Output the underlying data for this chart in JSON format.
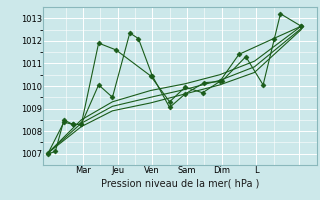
{
  "title": "",
  "xlabel": "Pression niveau de la mer( hPa )",
  "bg_color": "#cce8ea",
  "grid_color": "#ffffff",
  "line_color": "#1a5c1a",
  "ylim": [
    1006.5,
    1013.5
  ],
  "xlim": [
    -0.3,
    15.5
  ],
  "yticks": [
    1007,
    1008,
    1009,
    1010,
    1011,
    1012,
    1013
  ],
  "xtick_positions": [
    2.0,
    4.0,
    6.0,
    8.0,
    10.0,
    12.0,
    14.5
  ],
  "xtick_labels": [
    "Mar",
    "Jeu",
    "Ven",
    "Sam",
    "Dim",
    "L",
    ""
  ],
  "vline_positions": [
    2.0,
    4.0,
    6.0,
    8.0,
    10.0,
    12.0,
    14.5
  ],
  "series": [
    {
      "x": [
        0.0,
        0.4,
        0.9,
        1.4,
        1.9,
        2.9,
        3.7,
        4.7,
        5.2,
        6.0,
        7.0,
        7.9,
        9.0,
        10.0,
        11.4,
        12.4,
        13.4,
        14.6
      ],
      "y": [
        1007.0,
        1007.1,
        1008.5,
        1008.3,
        1008.3,
        1010.05,
        1009.5,
        1012.35,
        1012.1,
        1010.45,
        1009.05,
        1009.65,
        1010.15,
        1010.2,
        1011.3,
        1010.05,
        1013.2,
        1012.65
      ],
      "marker": "D",
      "ms": 2.5
    },
    {
      "x": [
        0.0,
        0.9,
        1.4,
        1.9,
        2.9,
        3.9,
        5.9,
        7.0,
        7.9,
        8.9,
        9.9,
        11.0,
        13.0,
        14.6
      ],
      "y": [
        1007.05,
        1008.4,
        1008.3,
        1008.3,
        1011.9,
        1011.6,
        1010.45,
        1009.3,
        1009.95,
        1009.7,
        1010.2,
        1011.4,
        1012.1,
        1012.65
      ],
      "marker": "D",
      "ms": 2.5
    },
    {
      "x": [
        0.0,
        1.9,
        3.7,
        5.9,
        7.9,
        9.9,
        11.9,
        14.6
      ],
      "y": [
        1007.05,
        1008.5,
        1009.3,
        1009.8,
        1010.1,
        1010.5,
        1011.1,
        1012.65
      ],
      "marker": null,
      "ms": 0
    },
    {
      "x": [
        0.0,
        1.9,
        3.7,
        5.9,
        7.9,
        9.9,
        11.9,
        14.6
      ],
      "y": [
        1007.05,
        1008.35,
        1009.1,
        1009.5,
        1009.85,
        1010.25,
        1010.85,
        1012.55
      ],
      "marker": null,
      "ms": 0
    },
    {
      "x": [
        0.0,
        1.9,
        3.7,
        5.9,
        7.9,
        9.9,
        11.9,
        14.6
      ],
      "y": [
        1007.05,
        1008.2,
        1008.9,
        1009.25,
        1009.65,
        1010.05,
        1010.6,
        1012.5
      ],
      "marker": null,
      "ms": 0
    }
  ]
}
